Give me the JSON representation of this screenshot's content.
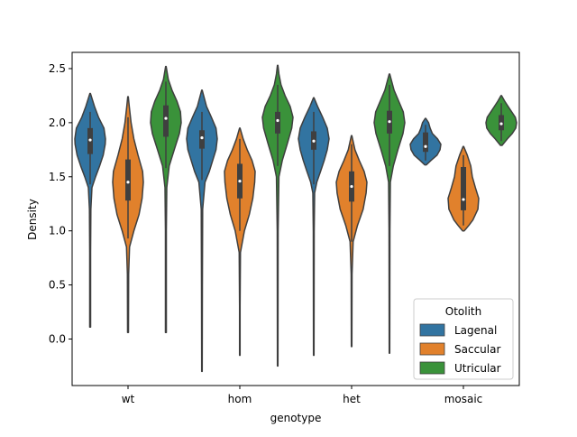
{
  "chart_data": {
    "type": "violin",
    "xlabel": "genotype",
    "ylabel": "Density",
    "categories": [
      "wt",
      "hom",
      "het",
      "mosaic"
    ],
    "ylim": [
      -0.43,
      2.65
    ],
    "yticks": [
      0.0,
      0.5,
      1.0,
      1.5,
      2.0,
      2.5
    ],
    "ytick_labels": [
      "0.0",
      "0.5",
      "1.0",
      "1.5",
      "2.0",
      "2.5"
    ],
    "legend": {
      "title": "Otolith",
      "position": "lower-right"
    },
    "series": [
      {
        "name": "Lagenal",
        "color": "#3274a1"
      },
      {
        "name": "Saccular",
        "color": "#e1812c"
      },
      {
        "name": "Utricular",
        "color": "#3a923a"
      }
    ],
    "violins": [
      {
        "category": "wt",
        "series": "Lagenal",
        "min": 0.11,
        "max": 2.27,
        "q1": 1.71,
        "median": 1.84,
        "q3": 1.95,
        "whisker_low": 1.43,
        "whisker_high": 2.1,
        "profile": [
          [
            0.11,
            0.03
          ],
          [
            0.8,
            0.03
          ],
          [
            1.2,
            0.05
          ],
          [
            1.4,
            0.12
          ],
          [
            1.5,
            0.35
          ],
          [
            1.6,
            0.62
          ],
          [
            1.7,
            0.85
          ],
          [
            1.8,
            0.98
          ],
          [
            1.85,
            1.0
          ],
          [
            1.95,
            0.9
          ],
          [
            2.05,
            0.55
          ],
          [
            2.15,
            0.28
          ],
          [
            2.27,
            0.02
          ]
        ]
      },
      {
        "category": "wt",
        "series": "Saccular",
        "min": 0.06,
        "max": 2.24,
        "q1": 1.28,
        "median": 1.45,
        "q3": 1.66,
        "whisker_low": 0.93,
        "whisker_high": 2.05,
        "profile": [
          [
            0.06,
            0.03
          ],
          [
            0.6,
            0.04
          ],
          [
            0.85,
            0.1
          ],
          [
            1.0,
            0.38
          ],
          [
            1.15,
            0.72
          ],
          [
            1.3,
            0.92
          ],
          [
            1.45,
            1.0
          ],
          [
            1.55,
            0.95
          ],
          [
            1.7,
            0.65
          ],
          [
            1.85,
            0.38
          ],
          [
            2.0,
            0.2
          ],
          [
            2.15,
            0.08
          ],
          [
            2.24,
            0.02
          ]
        ]
      },
      {
        "category": "wt",
        "series": "Utricular",
        "min": 0.06,
        "max": 2.52,
        "q1": 1.87,
        "median": 2.04,
        "q3": 2.16,
        "whisker_low": 1.58,
        "whisker_high": 2.38,
        "profile": [
          [
            0.06,
            0.03
          ],
          [
            1.0,
            0.03
          ],
          [
            1.4,
            0.06
          ],
          [
            1.6,
            0.22
          ],
          [
            1.75,
            0.55
          ],
          [
            1.9,
            0.88
          ],
          [
            2.0,
            1.0
          ],
          [
            2.1,
            0.95
          ],
          [
            2.2,
            0.72
          ],
          [
            2.3,
            0.4
          ],
          [
            2.4,
            0.16
          ],
          [
            2.52,
            0.02
          ]
        ]
      },
      {
        "category": "hom",
        "series": "Lagenal",
        "min": -0.3,
        "max": 2.3,
        "q1": 1.76,
        "median": 1.86,
        "q3": 1.93,
        "whisker_low": 1.47,
        "whisker_high": 2.1,
        "profile": [
          [
            -0.3,
            0.02
          ],
          [
            0.5,
            0.03
          ],
          [
            1.2,
            0.05
          ],
          [
            1.45,
            0.2
          ],
          [
            1.55,
            0.48
          ],
          [
            1.65,
            0.7
          ],
          [
            1.75,
            0.92
          ],
          [
            1.85,
            1.0
          ],
          [
            1.95,
            0.92
          ],
          [
            2.05,
            0.62
          ],
          [
            2.15,
            0.3
          ],
          [
            2.3,
            0.02
          ]
        ]
      },
      {
        "category": "hom",
        "series": "Saccular",
        "min": -0.15,
        "max": 1.95,
        "q1": 1.3,
        "median": 1.46,
        "q3": 1.62,
        "whisker_low": 1.0,
        "whisker_high": 1.85,
        "profile": [
          [
            -0.15,
            0.02
          ],
          [
            0.3,
            0.02
          ],
          [
            0.8,
            0.04
          ],
          [
            1.0,
            0.3
          ],
          [
            1.15,
            0.62
          ],
          [
            1.3,
            0.85
          ],
          [
            1.45,
            0.97
          ],
          [
            1.55,
            1.0
          ],
          [
            1.65,
            0.8
          ],
          [
            1.75,
            0.48
          ],
          [
            1.85,
            0.22
          ],
          [
            1.95,
            0.02
          ]
        ]
      },
      {
        "category": "hom",
        "series": "Utricular",
        "min": -0.25,
        "max": 2.53,
        "q1": 1.9,
        "median": 2.02,
        "q3": 2.1,
        "whisker_low": 1.6,
        "whisker_high": 2.35,
        "profile": [
          [
            -0.25,
            0.02
          ],
          [
            1.0,
            0.03
          ],
          [
            1.5,
            0.08
          ],
          [
            1.65,
            0.3
          ],
          [
            1.8,
            0.62
          ],
          [
            1.95,
            0.92
          ],
          [
            2.05,
            1.0
          ],
          [
            2.15,
            0.82
          ],
          [
            2.25,
            0.48
          ],
          [
            2.35,
            0.22
          ],
          [
            2.45,
            0.08
          ],
          [
            2.53,
            0.02
          ]
        ]
      },
      {
        "category": "het",
        "series": "Lagenal",
        "min": -0.15,
        "max": 2.23,
        "q1": 1.75,
        "median": 1.83,
        "q3": 1.92,
        "whisker_low": 1.43,
        "whisker_high": 2.1,
        "profile": [
          [
            -0.15,
            0.02
          ],
          [
            1.0,
            0.03
          ],
          [
            1.35,
            0.06
          ],
          [
            1.45,
            0.2
          ],
          [
            1.55,
            0.45
          ],
          [
            1.65,
            0.68
          ],
          [
            1.75,
            0.88
          ],
          [
            1.85,
            1.0
          ],
          [
            1.95,
            0.88
          ],
          [
            2.05,
            0.58
          ],
          [
            2.15,
            0.25
          ],
          [
            2.23,
            0.02
          ]
        ]
      },
      {
        "category": "het",
        "series": "Saccular",
        "min": -0.07,
        "max": 1.88,
        "q1": 1.27,
        "median": 1.41,
        "q3": 1.55,
        "whisker_low": 0.9,
        "whisker_high": 1.8,
        "profile": [
          [
            -0.07,
            0.02
          ],
          [
            0.6,
            0.03
          ],
          [
            0.9,
            0.1
          ],
          [
            1.05,
            0.38
          ],
          [
            1.2,
            0.75
          ],
          [
            1.35,
            0.95
          ],
          [
            1.45,
            1.0
          ],
          [
            1.55,
            0.82
          ],
          [
            1.65,
            0.5
          ],
          [
            1.75,
            0.22
          ],
          [
            1.88,
            0.02
          ]
        ]
      },
      {
        "category": "het",
        "series": "Utricular",
        "min": -0.13,
        "max": 2.45,
        "q1": 1.9,
        "median": 2.01,
        "q3": 2.11,
        "whisker_low": 1.6,
        "whisker_high": 2.35,
        "profile": [
          [
            -0.13,
            0.02
          ],
          [
            1.0,
            0.03
          ],
          [
            1.45,
            0.06
          ],
          [
            1.6,
            0.25
          ],
          [
            1.75,
            0.55
          ],
          [
            1.9,
            0.88
          ],
          [
            2.0,
            1.0
          ],
          [
            2.1,
            0.9
          ],
          [
            2.2,
            0.6
          ],
          [
            2.3,
            0.3
          ],
          [
            2.45,
            0.02
          ]
        ]
      },
      {
        "category": "mosaic",
        "series": "Lagenal",
        "min": 1.61,
        "max": 2.04,
        "q1": 1.73,
        "median": 1.78,
        "q3": 1.91,
        "whisker_low": 1.65,
        "whisker_high": 1.98,
        "profile": [
          [
            1.61,
            0.05
          ],
          [
            1.65,
            0.35
          ],
          [
            1.7,
            0.75
          ],
          [
            1.75,
            0.95
          ],
          [
            1.8,
            1.0
          ],
          [
            1.85,
            0.78
          ],
          [
            1.9,
            0.45
          ],
          [
            1.95,
            0.3
          ],
          [
            2.0,
            0.2
          ],
          [
            2.04,
            0.02
          ]
        ]
      },
      {
        "category": "mosaic",
        "series": "Saccular",
        "min": 1.0,
        "max": 1.78,
        "q1": 1.19,
        "median": 1.29,
        "q3": 1.59,
        "whisker_low": 1.05,
        "whisker_high": 1.7,
        "profile": [
          [
            1.0,
            0.05
          ],
          [
            1.05,
            0.35
          ],
          [
            1.1,
            0.62
          ],
          [
            1.2,
            0.95
          ],
          [
            1.3,
            1.0
          ],
          [
            1.4,
            0.78
          ],
          [
            1.5,
            0.58
          ],
          [
            1.6,
            0.48
          ],
          [
            1.7,
            0.25
          ],
          [
            1.78,
            0.02
          ]
        ]
      },
      {
        "category": "mosaic",
        "series": "Utricular",
        "min": 1.79,
        "max": 2.25,
        "q1": 1.93,
        "median": 1.99,
        "q3": 2.07,
        "whisker_low": 1.83,
        "whisker_high": 2.18,
        "profile": [
          [
            1.79,
            0.05
          ],
          [
            1.85,
            0.4
          ],
          [
            1.9,
            0.72
          ],
          [
            1.95,
            0.95
          ],
          [
            2.0,
            1.0
          ],
          [
            2.05,
            0.92
          ],
          [
            2.1,
            0.68
          ],
          [
            2.15,
            0.45
          ],
          [
            2.2,
            0.22
          ],
          [
            2.25,
            0.02
          ]
        ]
      }
    ]
  }
}
